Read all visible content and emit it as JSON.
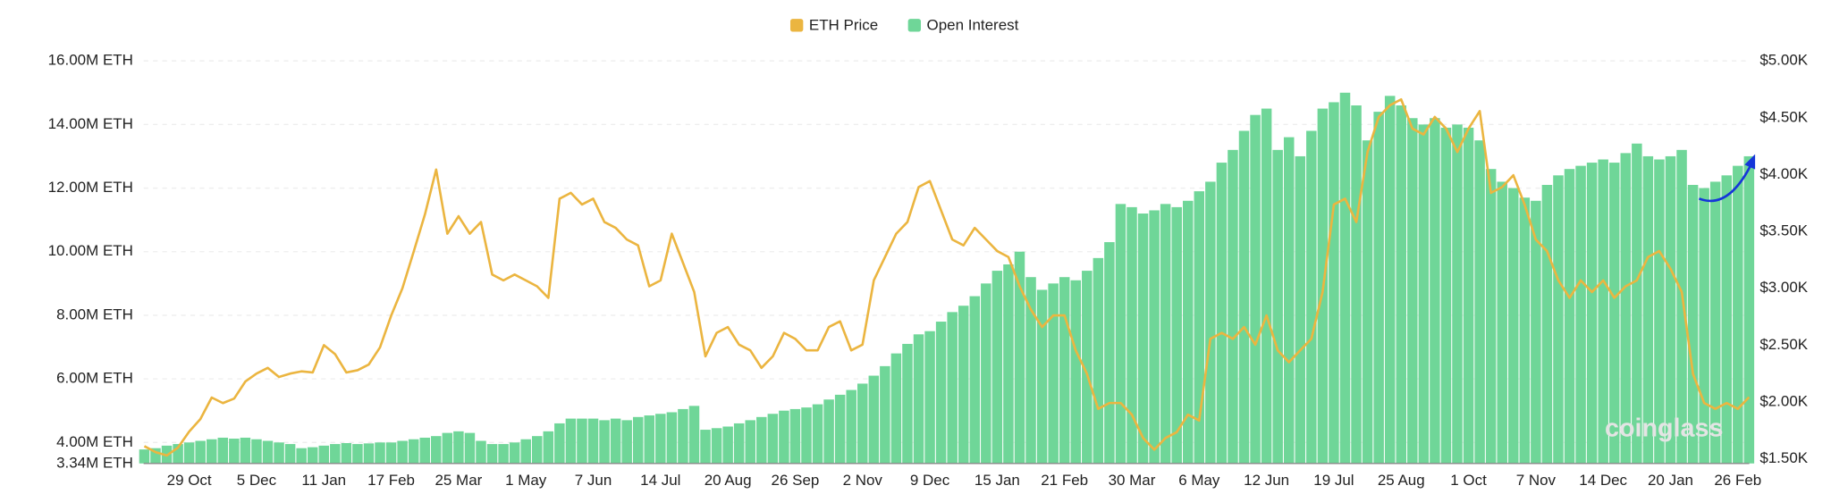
{
  "chart_data": {
    "type": "combo",
    "watermark": "coinglass",
    "legend": "top",
    "grid": true,
    "categories": [
      null,
      null,
      null,
      null,
      "29 Oct",
      null,
      null,
      null,
      null,
      null,
      "5 Dec",
      null,
      null,
      null,
      null,
      null,
      "11 Jan",
      null,
      null,
      null,
      null,
      null,
      "17 Feb",
      null,
      null,
      null,
      null,
      null,
      "25 Mar",
      null,
      null,
      null,
      null,
      null,
      "1 May",
      null,
      null,
      null,
      null,
      null,
      "7 Jun",
      null,
      null,
      null,
      null,
      null,
      "14 Jul",
      null,
      null,
      null,
      null,
      null,
      "20 Aug",
      null,
      null,
      null,
      null,
      null,
      "26 Sep",
      null,
      null,
      null,
      null,
      null,
      "2 Nov",
      null,
      null,
      null,
      null,
      null,
      "9 Dec",
      null,
      null,
      null,
      null,
      null,
      "15 Jan",
      null,
      null,
      null,
      null,
      null,
      "21 Feb",
      null,
      null,
      null,
      null,
      null,
      "30 Mar",
      null,
      null,
      null,
      null,
      null,
      "6 May",
      null,
      null,
      null,
      null,
      null,
      "12 Jun",
      null,
      null,
      null,
      null,
      null,
      "19 Jul",
      null,
      null,
      null,
      null,
      null,
      "25 Aug",
      null,
      null,
      null,
      null,
      null,
      "1 Oct",
      null,
      null,
      null,
      null,
      null,
      "7 Nov",
      null,
      null,
      null,
      null,
      null,
      "14 Dec",
      null,
      null,
      null,
      null,
      null,
      "20 Jan",
      null,
      null,
      null,
      null,
      null,
      "26 Feb",
      null
    ],
    "series": [
      {
        "name": "ETH Price",
        "type": "line",
        "axis": "y2",
        "color": "#ebb540",
        "values": [
          1612,
          1560,
          1530,
          1600,
          1740,
          1850,
          2040,
          1990,
          2030,
          2180,
          2250,
          2300,
          2220,
          2250,
          2270,
          2260,
          2500,
          2420,
          2260,
          2280,
          2330,
          2480,
          2760,
          3000,
          3320,
          3650,
          4045,
          3480,
          3634,
          3480,
          3583,
          3121,
          3070,
          3121,
          3070,
          3018,
          2916,
          3788,
          3840,
          3737,
          3788,
          3583,
          3532,
          3429,
          3378,
          3018,
          3070,
          3480,
          3224,
          2967,
          2402,
          2608,
          2659,
          2505,
          2454,
          2300,
          2402,
          2608,
          2556,
          2454,
          2454,
          2659,
          2710,
          2454,
          2505,
          3070,
          3275,
          3480,
          3583,
          3891,
          3943,
          3686,
          3429,
          3378,
          3532,
          3429,
          3327,
          3275,
          3018,
          2813,
          2659,
          2762,
          2762,
          2454,
          2248,
          1940,
          1992,
          1992,
          1889,
          1684,
          1581,
          1684,
          1735,
          1889,
          1838,
          2556,
          2608,
          2556,
          2659,
          2505,
          2762,
          2454,
          2351,
          2454,
          2556,
          2967,
          3737,
          3788,
          3583,
          4199,
          4507,
          4610,
          4661,
          4405,
          4353,
          4507,
          4405,
          4199,
          4405,
          4559,
          3840,
          3891,
          3994,
          3737,
          3429,
          3327,
          3070,
          2916,
          3070,
          2967,
          3070,
          2916,
          3018,
          3070,
          3275,
          3327,
          3172,
          2967,
          2248,
          1992,
          1940,
          1992,
          1940,
          2043
        ]
      },
      {
        "name": "Open Interest",
        "type": "bar",
        "axis": "y",
        "color": "#6fd698",
        "values": [
          3780000,
          3820000,
          3900000,
          3950000,
          4000000,
          4050000,
          4100000,
          4150000,
          4120000,
          4150000,
          4100000,
          4050000,
          4000000,
          3950000,
          3820000,
          3850000,
          3900000,
          3950000,
          3980000,
          3950000,
          3970000,
          4000000,
          4000000,
          4050000,
          4100000,
          4150000,
          4200000,
          4300000,
          4350000,
          4300000,
          4050000,
          3950000,
          3950000,
          4000000,
          4100000,
          4200000,
          4350000,
          4600000,
          4750000,
          4750000,
          4750000,
          4700000,
          4750000,
          4700000,
          4800000,
          4850000,
          4900000,
          4950000,
          5050000,
          5150000,
          4400000,
          4450000,
          4500000,
          4600000,
          4700000,
          4800000,
          4900000,
          5000000,
          5050000,
          5100000,
          5200000,
          5350000,
          5500000,
          5650000,
          5850000,
          6100000,
          6400000,
          6800000,
          7100000,
          7400000,
          7500000,
          7800000,
          8100000,
          8300000,
          8600000,
          9000000,
          9400000,
          9600000,
          10000000,
          9200000,
          8800000,
          9000000,
          9200000,
          9100000,
          9400000,
          9800000,
          10300000,
          11500000,
          11400000,
          11200000,
          11300000,
          11500000,
          11400000,
          11600000,
          11900000,
          12200000,
          12800000,
          13200000,
          13800000,
          14300000,
          14500000,
          13200000,
          13600000,
          13000000,
          13800000,
          14500000,
          14700000,
          15000000,
          14600000,
          13500000,
          14400000,
          14900000,
          14600000,
          14200000,
          14000000,
          14200000,
          13900000,
          14000000,
          13900000,
          13500000,
          12600000,
          12200000,
          12000000,
          11700000,
          11600000,
          12100000,
          12400000,
          12600000,
          12700000,
          12800000,
          12900000,
          12800000,
          13100000,
          13400000,
          13000000,
          12900000,
          13000000,
          13200000,
          12100000,
          12000000,
          12200000,
          12400000,
          12700000,
          13000000
        ]
      }
    ],
    "ylim": [
      3340000,
      16000000
    ],
    "yticks": [
      {
        "value": 3340000,
        "label": "3.34M ETH"
      },
      {
        "value": 4000000,
        "label": "4.00M ETH"
      },
      {
        "value": 6000000,
        "label": "6.00M ETH"
      },
      {
        "value": 8000000,
        "label": "8.00M ETH"
      },
      {
        "value": 10000000,
        "label": "10.00M ETH"
      },
      {
        "value": 12000000,
        "label": "12.00M ETH"
      },
      {
        "value": 14000000,
        "label": "14.00M ETH"
      },
      {
        "value": 16000000,
        "label": "16.00M ETH"
      }
    ],
    "y2lim": [
      1460,
      5000
    ],
    "y2ticks": [
      {
        "value": 1500,
        "label": "$1.50K"
      },
      {
        "value": 2000,
        "label": "$2.00K"
      },
      {
        "value": 2500,
        "label": "$2.50K"
      },
      {
        "value": 3000,
        "label": "$3.00K"
      },
      {
        "value": 3500,
        "label": "$3.50K"
      },
      {
        "value": 4000,
        "label": "$4.00K"
      },
      {
        "value": 4500,
        "label": "$4.50K"
      },
      {
        "value": 5000,
        "label": "$5.00K"
      }
    ]
  }
}
